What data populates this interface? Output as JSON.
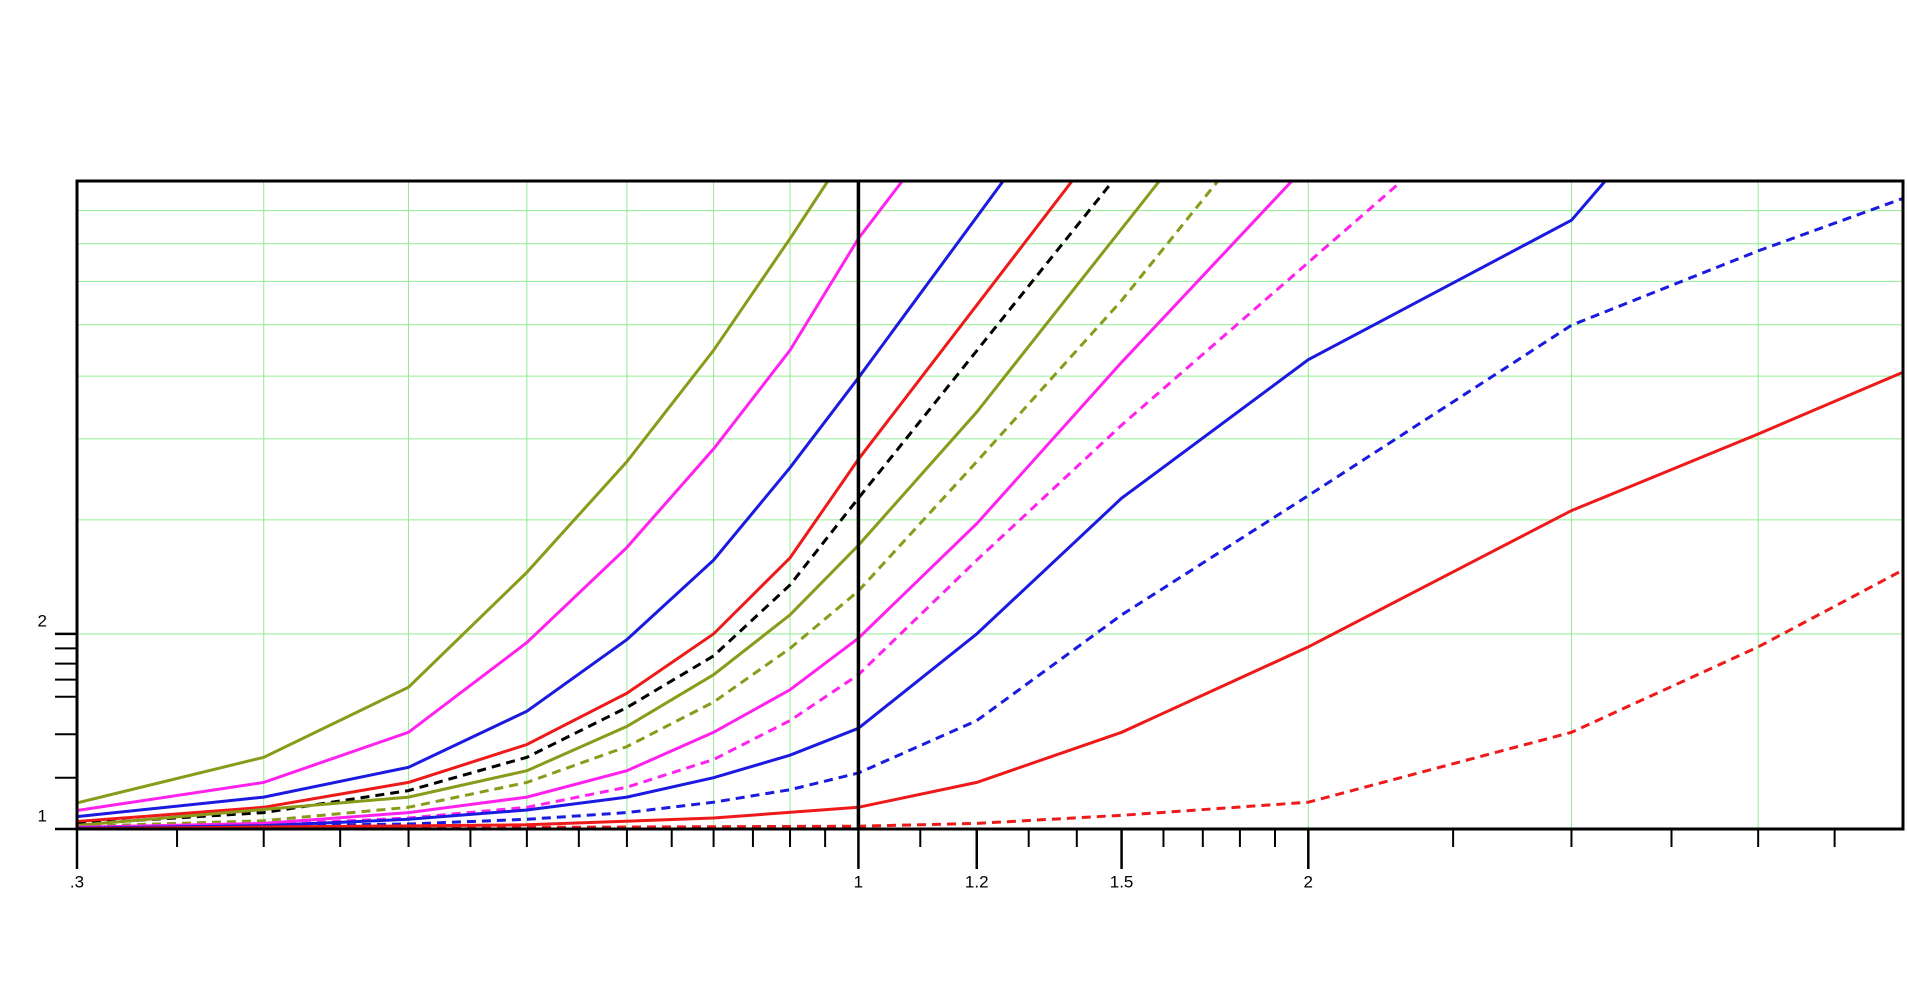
{
  "chart_data": {
    "type": "line",
    "xscale": "log",
    "yscale": "log",
    "xlim": [
      0.3,
      5
    ],
    "ylim": [
      1,
      10
    ],
    "xticks": [
      {
        "value": 0.3,
        "label": ".3"
      },
      1,
      1.2,
      1.5,
      2
    ],
    "yticks": [
      1,
      2
    ],
    "xminorticks": [
      0.35,
      0.4,
      0.45,
      0.5,
      0.55,
      0.6,
      0.65,
      0.7,
      0.75,
      0.8,
      0.85,
      0.9,
      0.95,
      1.1,
      1.3,
      1.4,
      1.6,
      1.7,
      1.8,
      1.9,
      2.5,
      3,
      3.5,
      4,
      4.5
    ],
    "yminorticks": [
      1.2,
      1.4,
      1.6,
      1.7,
      1.8,
      1.9
    ],
    "xgrid": [
      0.4,
      0.5,
      0.6,
      0.7,
      0.8,
      0.9,
      2,
      3,
      4
    ],
    "ygrid": [
      2,
      3,
      4,
      5,
      6,
      7,
      8,
      9
    ],
    "vline": 1,
    "grid_color": "#90ee90",
    "series": [
      {
        "color": "#8a9a1a",
        "dashed": false,
        "x": [
          0.3,
          0.4,
          0.5,
          0.6,
          0.7,
          0.8,
          0.9,
          0.954
        ],
        "values": [
          1.097,
          1.29,
          1.655,
          2.49,
          3.69,
          5.48,
          8.15,
          10
        ]
      },
      {
        "color": "#ff22ee",
        "dashed": false,
        "x": [
          0.3,
          0.4,
          0.5,
          0.6,
          0.7,
          0.8,
          0.9,
          1,
          1.07
        ],
        "values": [
          1.068,
          1.18,
          1.41,
          1.94,
          2.72,
          3.86,
          5.48,
          8.15,
          10
        ]
      },
      {
        "color": "#1a1ae0",
        "dashed": false,
        "x": [
          0.3,
          0.4,
          0.5,
          0.6,
          0.7,
          0.8,
          0.9,
          1,
          1.25
        ],
        "values": [
          1.045,
          1.12,
          1.245,
          1.52,
          1.96,
          2.6,
          3.61,
          4.97,
          10
        ]
      },
      {
        "color": "#ee1a1a",
        "dashed": false,
        "x": [
          0.3,
          0.4,
          0.5,
          0.6,
          0.7,
          0.8,
          0.9,
          1,
          1.39
        ],
        "values": [
          1.027,
          1.08,
          1.18,
          1.35,
          1.62,
          2.0,
          2.62,
          3.72,
          10
        ]
      },
      {
        "color": "#000000",
        "dashed": true,
        "x": [
          0.3,
          0.4,
          0.5,
          0.6,
          0.7,
          0.8,
          0.9,
          1,
          1.48
        ],
        "values": [
          1.018,
          1.06,
          1.146,
          1.29,
          1.54,
          1.85,
          2.38,
          3.24,
          10
        ]
      },
      {
        "color": "#8a9a1a",
        "dashed": false,
        "x": [
          0.3,
          0.5,
          0.6,
          0.7,
          0.8,
          0.9,
          1,
          1.2,
          1.59
        ],
        "values": [
          1.013,
          1.12,
          1.23,
          1.44,
          1.73,
          2.14,
          2.74,
          4.4,
          10
        ]
      },
      {
        "color": "#8a9a1a",
        "dashed": true,
        "x": [
          0.3,
          0.4,
          0.5,
          0.6,
          0.7,
          0.8,
          0.9,
          1,
          1.2,
          1.5,
          1.74
        ],
        "values": [
          1.009,
          1.03,
          1.08,
          1.18,
          1.34,
          1.57,
          1.9,
          2.33,
          3.69,
          6.54,
          10
        ]
      },
      {
        "color": "#ff22ee",
        "dashed": false,
        "x": [
          0.3,
          0.4,
          0.5,
          0.6,
          0.7,
          0.8,
          0.9,
          1,
          1.2,
          1.5,
          1.95
        ],
        "values": [
          1.006,
          1.02,
          1.06,
          1.12,
          1.23,
          1.41,
          1.64,
          1.97,
          2.96,
          5.25,
          10
        ]
      },
      {
        "color": "#ff22ee",
        "dashed": true,
        "x": [
          0.3,
          0.4,
          0.5,
          0.6,
          0.7,
          0.8,
          0.9,
          1,
          1.2,
          1.5,
          2.31
        ],
        "values": [
          1.004,
          1.015,
          1.04,
          1.08,
          1.16,
          1.28,
          1.47,
          1.73,
          2.6,
          4.2,
          10
        ]
      },
      {
        "color": "#1a1ae0",
        "dashed": false,
        "x": [
          0.3,
          0.4,
          0.5,
          0.6,
          0.7,
          0.8,
          0.9,
          1,
          1.2,
          1.5,
          2,
          3,
          3.16
        ],
        "values": [
          1.003,
          1.012,
          1.035,
          1.07,
          1.12,
          1.2,
          1.3,
          1.43,
          2.0,
          3.24,
          5.3,
          8.7,
          10
        ]
      },
      {
        "color": "#1a1ae0",
        "dashed": true,
        "x": [
          0.3,
          0.5,
          0.6,
          0.7,
          0.8,
          0.9,
          1,
          1.2,
          1.5,
          2,
          3,
          4,
          5
        ],
        "values": [
          1.002,
          1.018,
          1.035,
          1.06,
          1.1,
          1.15,
          1.22,
          1.47,
          2.14,
          3.27,
          5.99,
          7.8,
          9.4
        ]
      },
      {
        "color": "#ee1a1a",
        "dashed": false,
        "x": [
          0.3,
          0.6,
          0.8,
          1,
          1.2,
          1.5,
          2,
          3,
          4,
          5
        ],
        "values": [
          1.001,
          1.015,
          1.04,
          1.08,
          1.18,
          1.41,
          1.91,
          3.1,
          4.07,
          5.07
        ]
      },
      {
        "color": "#ee1a1a",
        "dashed": true,
        "x": [
          0.3,
          1,
          1.2,
          1.5,
          2,
          3,
          4,
          5
        ],
        "values": [
          1.0,
          1.01,
          1.02,
          1.05,
          1.1,
          1.41,
          1.91,
          2.51
        ]
      }
    ]
  }
}
